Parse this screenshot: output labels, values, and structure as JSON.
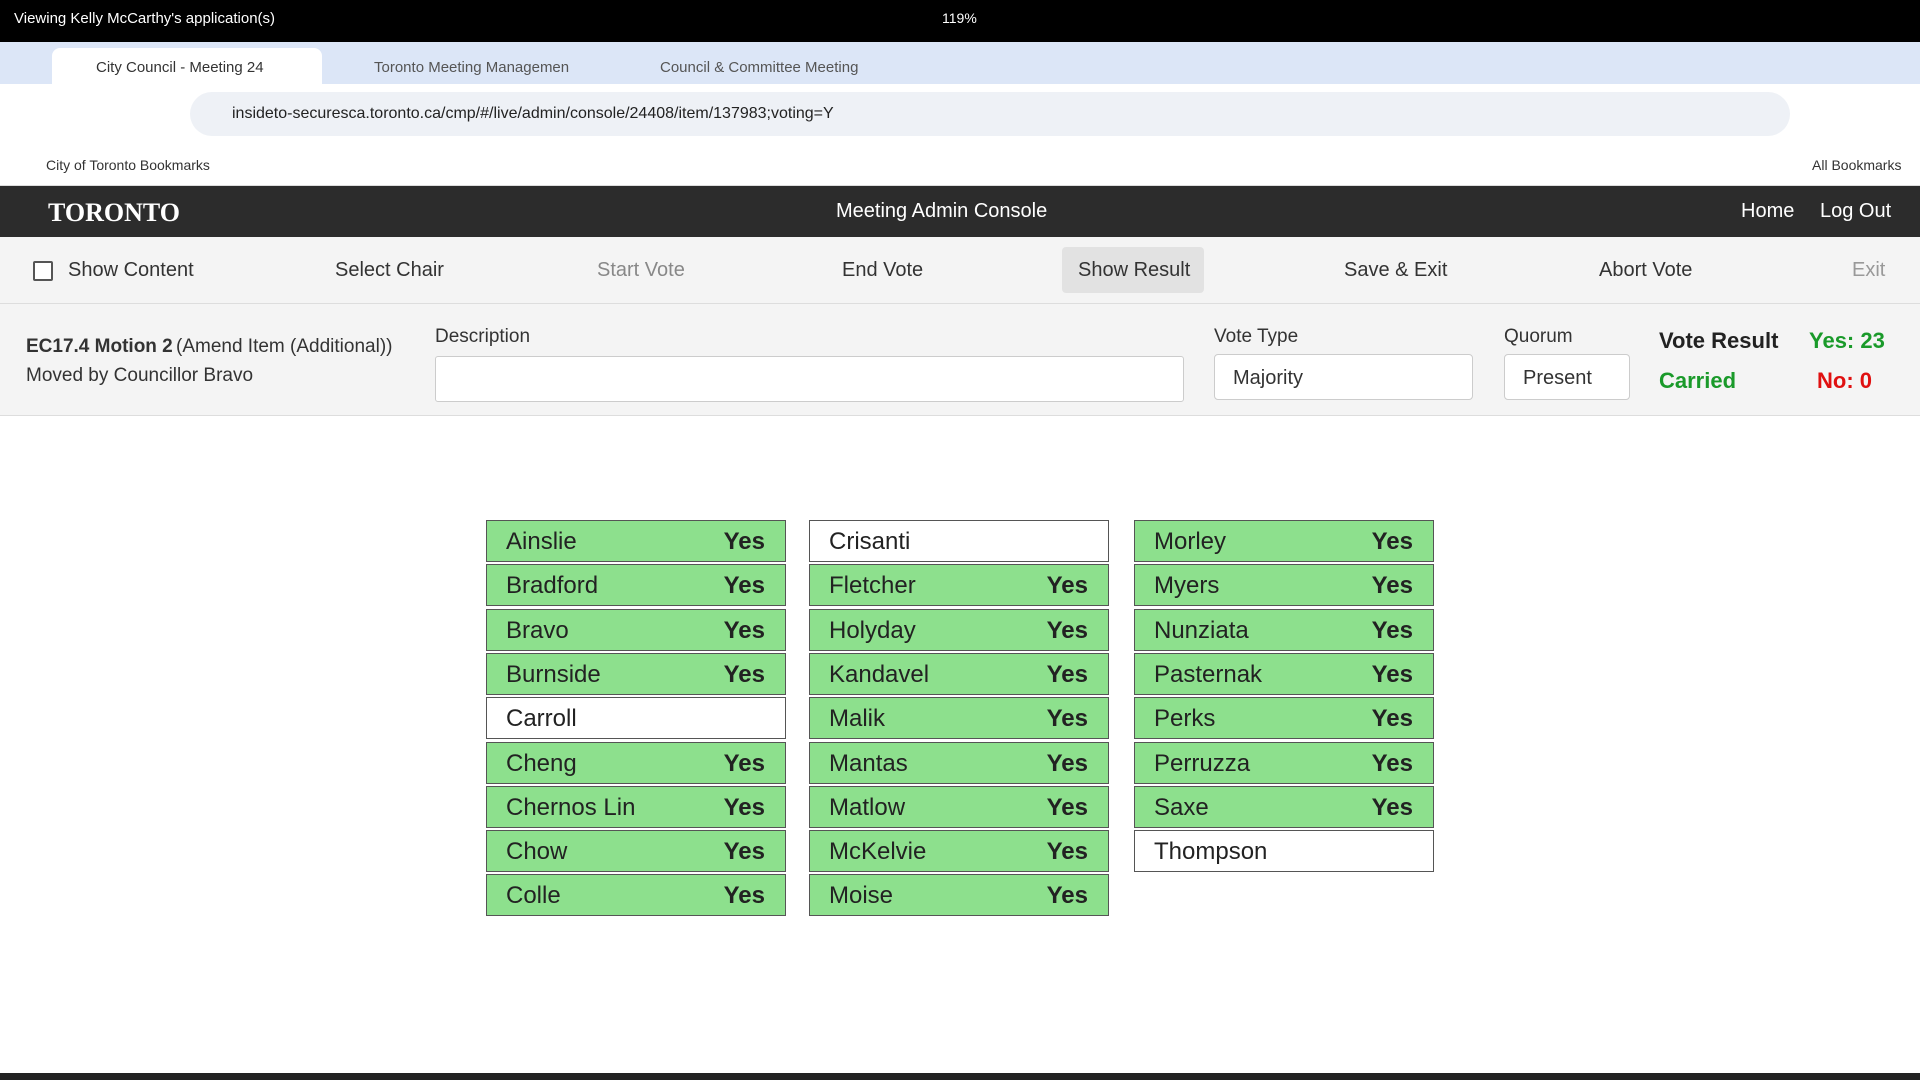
{
  "banner": "Viewing Kelly McCarthy's application(s)",
  "zoom": "119%",
  "tabs": [
    "City Council - Meeting 24",
    "Toronto Meeting Managemen",
    "Council & Committee Meeting"
  ],
  "url": "insideto-securesca.toronto.ca/cmp/#/live/admin/console/24408/item/137983;voting=Y",
  "bookmark_folder": "City of Toronto Bookmarks",
  "all_bookmarks": "All Bookmarks",
  "header": {
    "logo": "TORONTO",
    "title": "Meeting Admin Console",
    "nav": [
      "Home",
      "Log Out"
    ]
  },
  "toolbar": {
    "show_content": "Show Content",
    "buttons": [
      "Select Chair",
      "Start Vote",
      "End Vote",
      "Show Result",
      "Save & Exit",
      "Abort Vote",
      "Exit"
    ]
  },
  "item": {
    "code": "EC17.4 Motion 2",
    "kind": "(Amend Item (Additional))",
    "mover": "Moved by Councillor Bravo",
    "description_label": "Description",
    "vote_type_label": "Vote Type",
    "vote_type": "Majority",
    "quorum_label": "Quorum",
    "quorum": "Present",
    "vote_result_label": "Vote Result",
    "result": "Carried",
    "yes": "Yes: 23",
    "no": "No: 0"
  },
  "councillors": [
    {
      "name": "Ainslie",
      "vote": "Yes"
    },
    {
      "name": "Bradford",
      "vote": "Yes"
    },
    {
      "name": "Bravo",
      "vote": "Yes"
    },
    {
      "name": "Burnside",
      "vote": "Yes"
    },
    {
      "name": "Carroll"
    },
    {
      "name": "Cheng",
      "vote": "Yes"
    },
    {
      "name": "Chernos Lin",
      "vote": "Yes"
    },
    {
      "name": "Chow",
      "vote": "Yes"
    },
    {
      "name": "Colle",
      "vote": "Yes"
    },
    {
      "name": "Crisanti"
    },
    {
      "name": "Fletcher",
      "vote": "Yes"
    },
    {
      "name": "Holyday",
      "vote": "Yes"
    },
    {
      "name": "Kandavel",
      "vote": "Yes"
    },
    {
      "name": "Malik",
      "vote": "Yes"
    },
    {
      "name": "Mantas",
      "vote": "Yes"
    },
    {
      "name": "Matlow",
      "vote": "Yes"
    },
    {
      "name": "McKelvie",
      "vote": "Yes"
    },
    {
      "name": "Moise",
      "vote": "Yes"
    },
    {
      "name": "Morley",
      "vote": "Yes"
    },
    {
      "name": "Myers",
      "vote": "Yes"
    },
    {
      "name": "Nunziata",
      "vote": "Yes"
    },
    {
      "name": "Pasternak",
      "vote": "Yes"
    },
    {
      "name": "Perks",
      "vote": "Yes"
    },
    {
      "name": "Perruzza",
      "vote": "Yes"
    },
    {
      "name": "Saxe",
      "vote": "Yes"
    },
    {
      "name": "Thompson"
    }
  ]
}
